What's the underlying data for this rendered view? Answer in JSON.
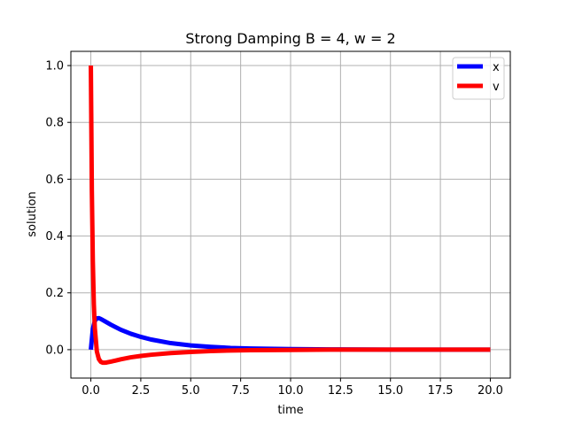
{
  "chart_data": {
    "type": "line",
    "title": "Strong Damping B = 4, w = 2",
    "xlabel": "time",
    "ylabel": "solution",
    "xlim": [
      -1.0,
      21.0
    ],
    "ylim": [
      -0.1,
      1.05
    ],
    "grid": true,
    "legend_position": "upper right",
    "x_ticks": [
      0.0,
      2.5,
      5.0,
      7.5,
      10.0,
      12.5,
      15.0,
      17.5,
      20.0
    ],
    "x_tick_labels": [
      "0.0",
      "2.5",
      "5.0",
      "7.5",
      "10.0",
      "12.5",
      "15.0",
      "17.5",
      "20.0"
    ],
    "y_ticks": [
      0.0,
      0.2,
      0.4,
      0.6,
      0.8,
      1.0
    ],
    "y_tick_labels": [
      "0.0",
      "0.2",
      "0.4",
      "0.6",
      "0.8",
      "1.0"
    ],
    "series": [
      {
        "name": "x",
        "color": "#0000ff",
        "x": [
          0.0,
          0.1,
          0.2,
          0.3,
          0.4,
          0.5,
          0.7,
          1.0,
          1.5,
          2.0,
          2.5,
          3.0,
          4.0,
          5.0,
          6.0,
          7.0,
          8.0,
          10.0,
          12.0,
          15.0,
          20.0
        ],
        "y": [
          0.0,
          0.073,
          0.101,
          0.11,
          0.111,
          0.108,
          0.1,
          0.088,
          0.07,
          0.056,
          0.045,
          0.036,
          0.023,
          0.015,
          0.01,
          0.006,
          0.004,
          0.002,
          0.001,
          0.0,
          0.0
        ]
      },
      {
        "name": "v",
        "color": "#ff0000",
        "x": [
          0.0,
          0.05,
          0.1,
          0.15,
          0.2,
          0.3,
          0.4,
          0.5,
          0.6,
          0.7,
          0.8,
          1.0,
          1.2,
          1.5,
          2.0,
          2.5,
          3.0,
          4.0,
          5.0,
          6.0,
          7.0,
          8.0,
          10.0,
          12.0,
          15.0,
          20.0
        ],
        "y": [
          1.0,
          0.56,
          0.31,
          0.16,
          0.075,
          -0.006,
          -0.033,
          -0.043,
          -0.046,
          -0.046,
          -0.045,
          -0.042,
          -0.039,
          -0.034,
          -0.027,
          -0.022,
          -0.018,
          -0.012,
          -0.008,
          -0.005,
          -0.003,
          -0.002,
          -0.001,
          0.0,
          0.0,
          0.0
        ]
      }
    ]
  }
}
